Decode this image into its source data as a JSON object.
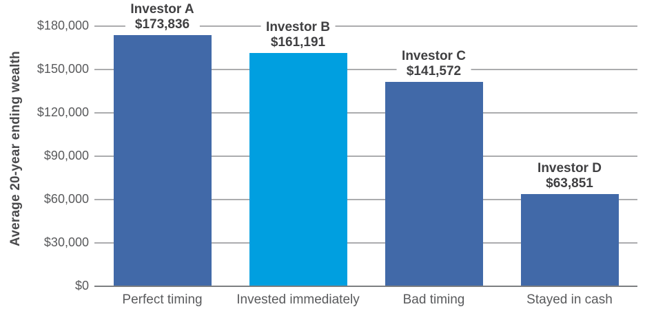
{
  "chart_data": {
    "type": "bar",
    "title": "",
    "ylabel": "Average 20-year ending wealth",
    "xlabel": "",
    "categories": [
      "Perfect timing",
      "Invested immediately",
      "Bad timing",
      "Stayed in cash"
    ],
    "series": [
      {
        "name": "Average 20-year ending wealth",
        "values": [
          173836,
          161191,
          141572,
          63851
        ]
      }
    ],
    "bar_annotations": [
      {
        "name": "Investor A",
        "value_label": "$173,836"
      },
      {
        "name": "Investor B",
        "value_label": "$161,191"
      },
      {
        "name": "Investor C",
        "value_label": "$141,572"
      },
      {
        "name": "Investor D",
        "value_label": "$63,851"
      }
    ],
    "y_ticks": [
      "$0",
      "$30,000",
      "$60,000",
      "$90,000",
      "$120,000",
      "$150,000",
      "$180,000"
    ],
    "ylim": [
      0,
      180000
    ],
    "grid": true,
    "legend": false,
    "bar_colors": [
      "#4169a8",
      "#009fe0",
      "#4169a8",
      "#4169a8"
    ],
    "colors": {
      "bar_primary": "#4169a8",
      "bar_highlight": "#009fe0",
      "gridline": "#abacae",
      "axis_line": "#7c7e80",
      "annotation_text": "#404042",
      "tick_text": "#595a5c"
    }
  }
}
